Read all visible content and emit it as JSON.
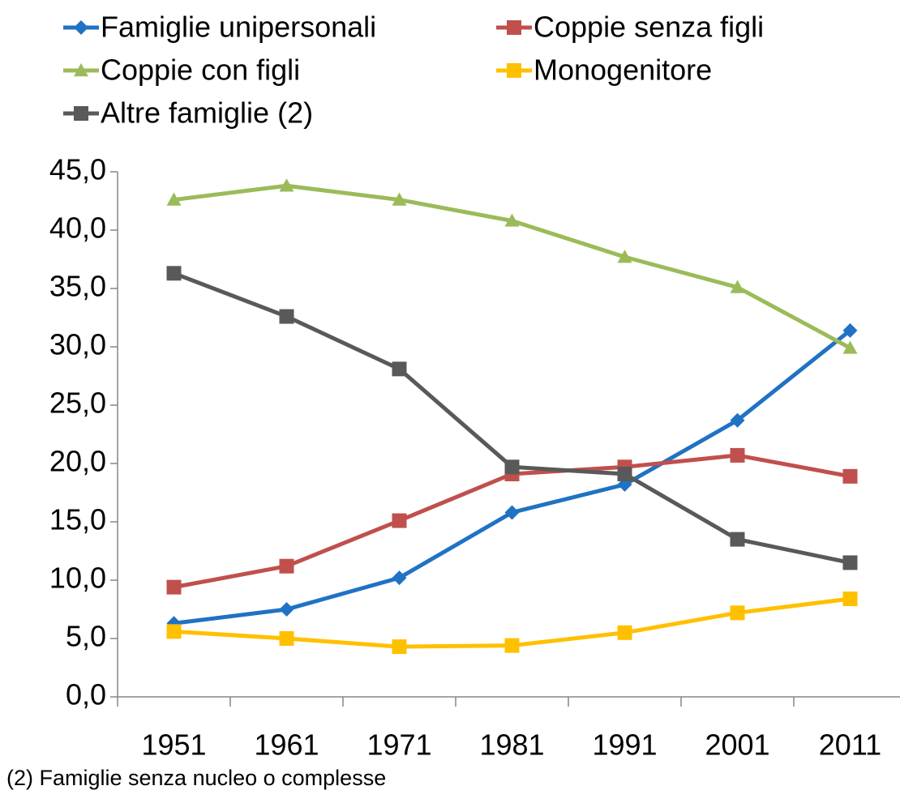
{
  "chart_data": {
    "type": "line",
    "categories": [
      "1951",
      "1961",
      "1971",
      "1981",
      "1991",
      "2001",
      "2011"
    ],
    "series": [
      {
        "name": "Famiglie unipersonali",
        "color": "#1f72c4",
        "marker": "diamond",
        "values": [
          6.3,
          7.5,
          10.2,
          15.8,
          18.2,
          23.7,
          31.4
        ]
      },
      {
        "name": "Coppie senza figli",
        "color": "#c0504d",
        "marker": "square",
        "values": [
          9.4,
          11.2,
          15.1,
          19.1,
          19.7,
          20.7,
          18.9
        ]
      },
      {
        "name": "Coppie con figli",
        "color": "#9bbb59",
        "marker": "triangle",
        "values": [
          42.6,
          43.8,
          42.6,
          40.8,
          37.7,
          35.1,
          29.9
        ]
      },
      {
        "name": "Monogenitore",
        "color": "#ffc000",
        "marker": "square",
        "values": [
          5.6,
          5.0,
          4.3,
          4.4,
          5.5,
          7.2,
          8.4
        ]
      },
      {
        "name": "Altre famiglie (2)",
        "color": "#595959",
        "marker": "square",
        "values": [
          36.3,
          32.6,
          28.1,
          19.7,
          19.1,
          13.5,
          11.5
        ]
      }
    ],
    "ylim": [
      0,
      45
    ],
    "yticks": [
      {
        "value": 0,
        "label": "0,0"
      },
      {
        "value": 5,
        "label": "5,0"
      },
      {
        "value": 10,
        "label": "10,0"
      },
      {
        "value": 15,
        "label": "15,0"
      },
      {
        "value": 20,
        "label": "20,0"
      },
      {
        "value": 25,
        "label": "25,0"
      },
      {
        "value": 30,
        "label": "30,0"
      },
      {
        "value": 35,
        "label": "35,0"
      },
      {
        "value": 40,
        "label": "40,0"
      },
      {
        "value": 45,
        "label": "45,0"
      }
    ],
    "grid": false,
    "legend": "top",
    "note": "(2) Famiglie senza nucleo o complesse"
  }
}
